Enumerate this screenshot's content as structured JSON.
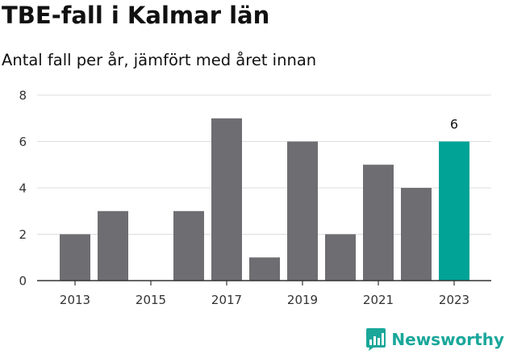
{
  "chart_data": {
    "type": "bar",
    "title": "TBE-fall i Kalmar län",
    "subtitle": "Antal fall per år, jämfört med året innan",
    "categories": [
      2013,
      2014,
      2015,
      2016,
      2017,
      2018,
      2019,
      2020,
      2021,
      2022,
      2023
    ],
    "values": [
      2,
      3,
      0,
      3,
      7,
      1,
      6,
      2,
      5,
      4,
      6
    ],
    "x_tick_labels": [
      "2013",
      "2015",
      "2017",
      "2019",
      "2021",
      "2023"
    ],
    "y_ticks": [
      0,
      2,
      4,
      6,
      8
    ],
    "ylim": [
      0,
      8
    ],
    "xlabel": "",
    "ylabel": "",
    "grid": true,
    "highlight_category": 2023,
    "data_labels": [
      {
        "category": 2023,
        "text": "6"
      }
    ],
    "colors": {
      "bar": "#6e6d71",
      "highlight": "#00a396",
      "grid": "#dddddd",
      "axis": "#333333"
    }
  },
  "branding": {
    "name": "Newsworthy",
    "icon": "newsworthy-logo-icon",
    "color": "#1aa79a"
  }
}
